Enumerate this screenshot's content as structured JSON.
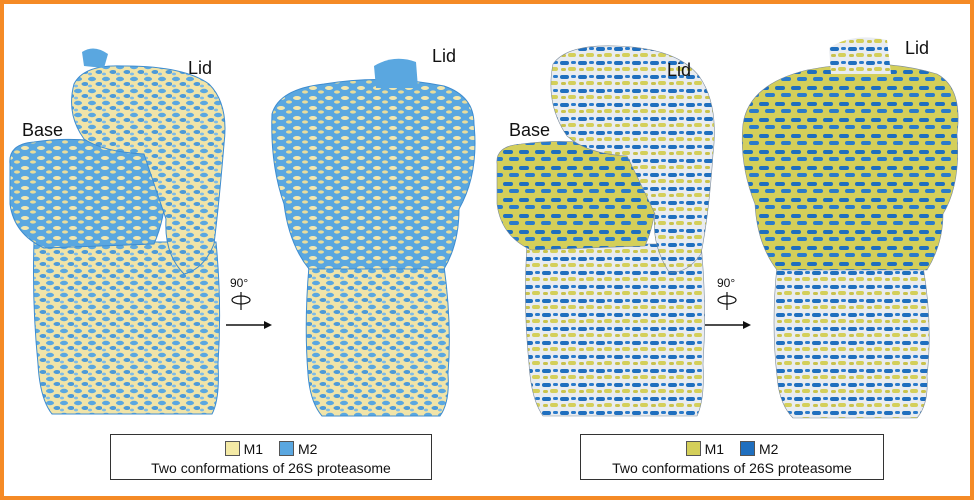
{
  "left_panel": {
    "labels": {
      "lid_a": "Lid",
      "base": "Base",
      "lid_b": "Lid",
      "rotation": "90°"
    },
    "legend": {
      "items": [
        {
          "label": "M1",
          "color": "#f4eaa6"
        },
        {
          "label": "M2",
          "color": "#5aa7e0"
        }
      ],
      "caption": "Two conformations of 26S proteasome"
    }
  },
  "right_panel": {
    "labels": {
      "lid_a": "Lid",
      "base": "Base",
      "lid_b": "Lid",
      "rotation": "90°"
    },
    "legend": {
      "items": [
        {
          "label": "M1",
          "color": "#d4cf5a"
        },
        {
          "label": "M2",
          "color": "#1f6fbf"
        }
      ],
      "caption": "Two conformations of 26S proteasome"
    }
  }
}
